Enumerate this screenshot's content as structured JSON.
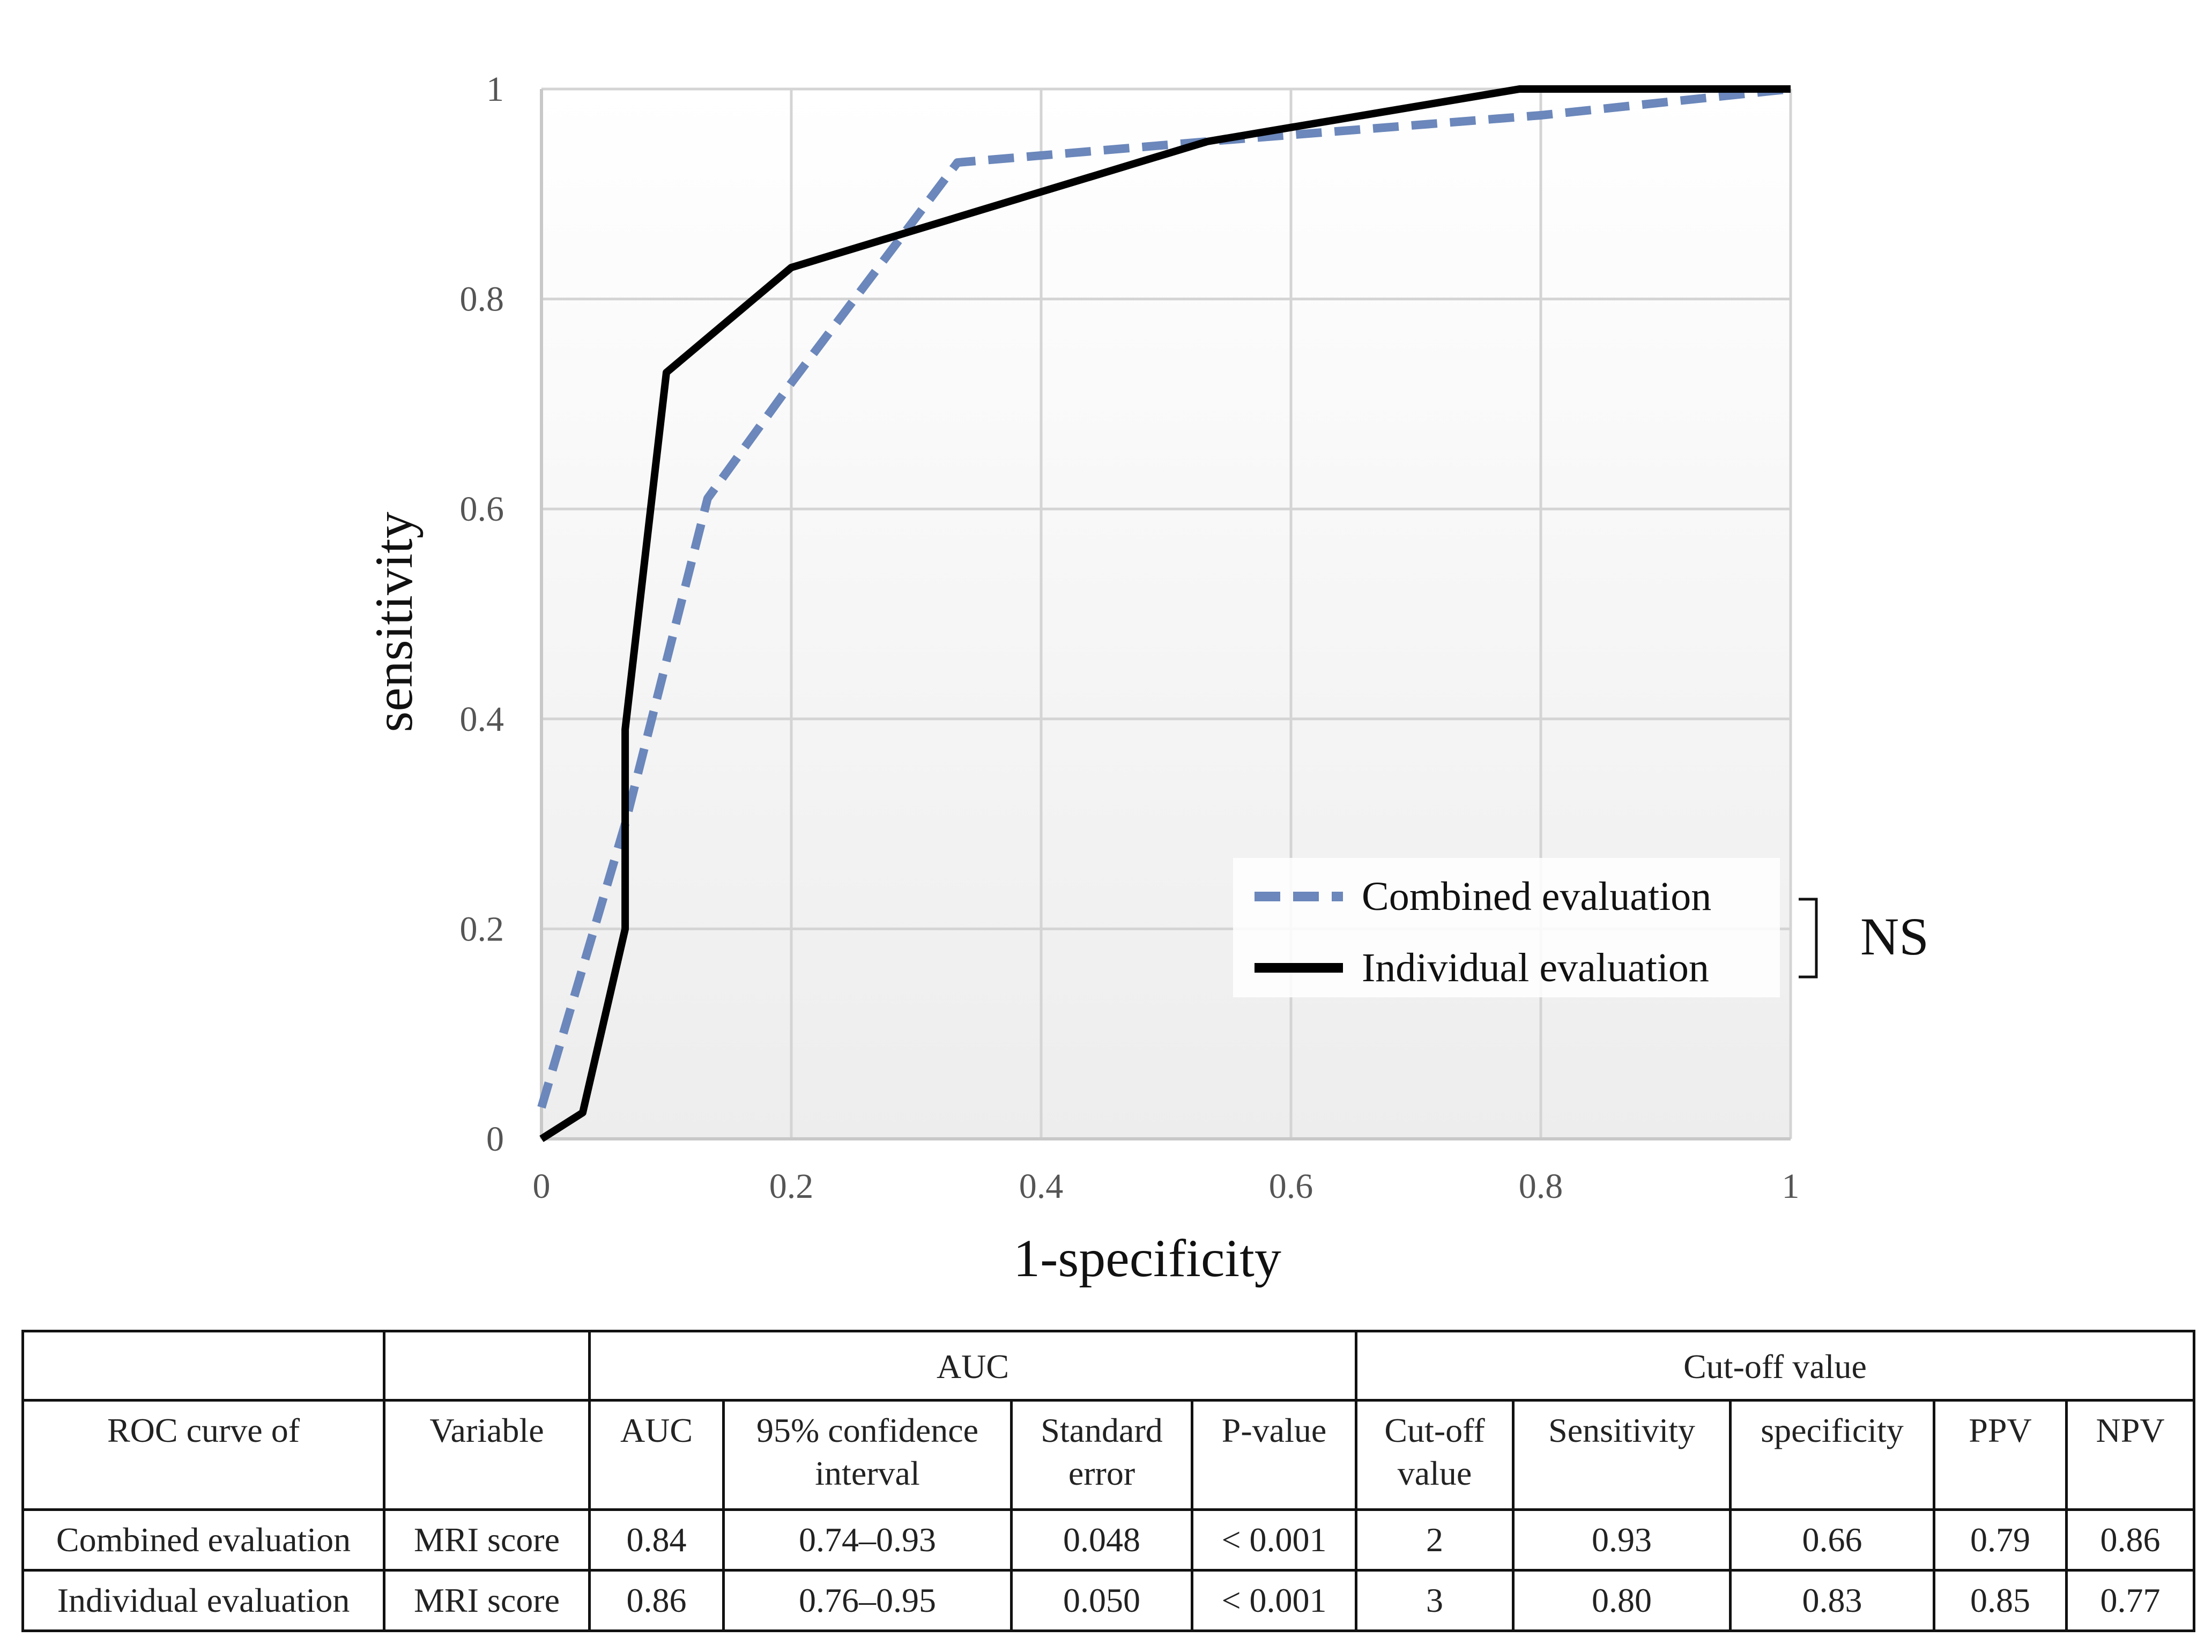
{
  "chart_data": {
    "type": "line",
    "title": "",
    "xlabel": "1-specificity",
    "ylabel": "sensitivity",
    "xlim": [
      0,
      1
    ],
    "ylim": [
      0,
      1
    ],
    "x_ticks": [
      "0",
      "0.2",
      "0.4",
      "0.6",
      "0.8",
      "1"
    ],
    "y_ticks": [
      "0",
      "0.2",
      "0.4",
      "0.6",
      "0.8",
      "1"
    ],
    "grid": true,
    "legend_position": "bottom-right",
    "series": [
      {
        "name": "Combined evaluation",
        "style": "dashed",
        "color": "#6b87bb",
        "x": [
          0,
          0.067,
          0.133,
          0.2,
          0.333,
          0.533,
          0.8,
          1
        ],
        "y": [
          0.03,
          0.3,
          0.61,
          0.72,
          0.93,
          0.95,
          0.975,
          1
        ]
      },
      {
        "name": "Individual evaluation",
        "style": "solid",
        "color": "#000000",
        "x": [
          0,
          0.033,
          0.067,
          0.067,
          0.067,
          0.1,
          0.2,
          0.533,
          0.783,
          1
        ],
        "y": [
          0,
          0.025,
          0.2,
          0.39,
          0.39,
          0.73,
          0.83,
          0.95,
          1,
          1
        ]
      }
    ],
    "annotation": "NS"
  },
  "table": {
    "group_auc": "AUC",
    "group_cutoff": "Cut-off value",
    "headers": [
      "ROC curve of",
      "Variable",
      "AUC",
      "95% confidence interval",
      "Standard error",
      "P-value",
      "Cut-off value",
      "Sensitivity",
      "specificity",
      "PPV",
      "NPV"
    ],
    "rows": [
      [
        "Combined evaluation",
        "MRI score",
        "0.84",
        "0.74–0.93",
        "0.048",
        "< 0.001",
        "2",
        "0.93",
        "0.66",
        "0.79",
        "0.86"
      ],
      [
        "Individual evaluation",
        "MRI score",
        "0.86",
        "0.76–0.95",
        "0.050",
        "< 0.001",
        "3",
        "0.80",
        "0.83",
        "0.85",
        "0.77"
      ]
    ]
  }
}
